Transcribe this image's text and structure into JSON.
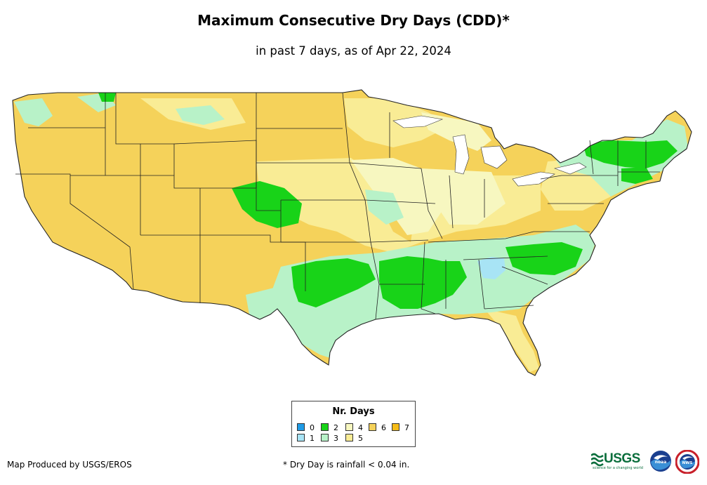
{
  "title": "Maximum Consecutive Dry Days (CDD)*",
  "subtitle": "in past 7 days, as of Apr 22, 2024",
  "legend": {
    "title": "Nr. Days",
    "items": [
      {
        "label": "0",
        "color": "#1f9be6"
      },
      {
        "label": "1",
        "color": "#a8e4f5"
      },
      {
        "label": "2",
        "color": "#18d318"
      },
      {
        "label": "3",
        "color": "#b8f2c8"
      },
      {
        "label": "4",
        "color": "#f7f7c0"
      },
      {
        "label": "5",
        "color": "#f9ec95"
      },
      {
        "label": "6",
        "color": "#f5d25a"
      },
      {
        "label": "7",
        "color": "#f5bc18"
      }
    ]
  },
  "credit": "Map Produced by USGS/EROS",
  "footnote": "* Dry Day is rainfall < 0.04 in.",
  "logos": {
    "usgs": "USGS",
    "usgs_tagline": "science for a changing world",
    "noaa": "noaa",
    "nws": "NWS"
  }
}
